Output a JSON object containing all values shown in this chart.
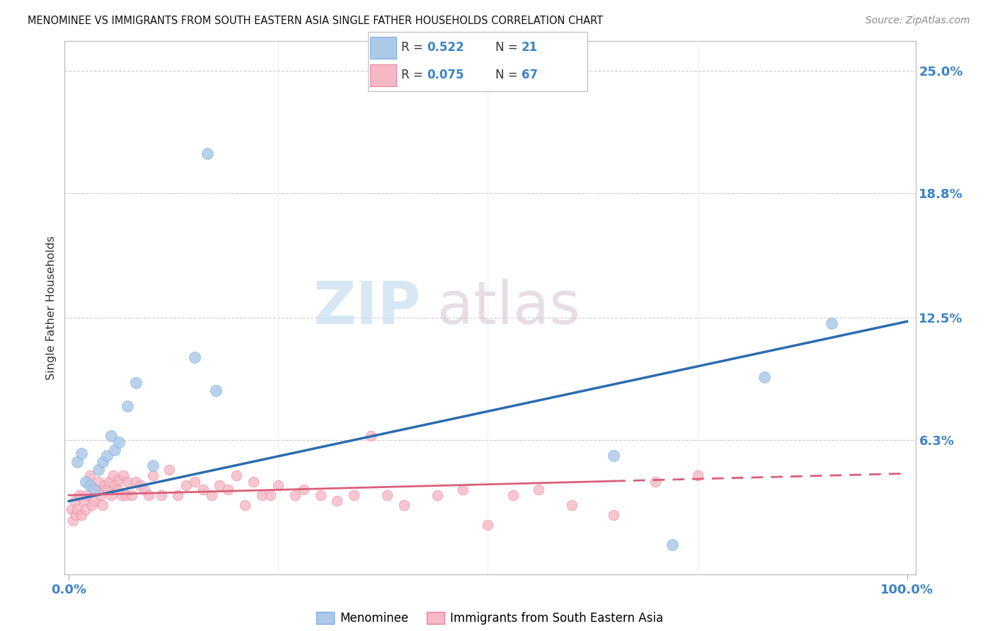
{
  "title": "MENOMINEE VS IMMIGRANTS FROM SOUTH EASTERN ASIA SINGLE FATHER HOUSEHOLDS CORRELATION CHART",
  "source": "Source: ZipAtlas.com",
  "ylabel": "Single Father Households",
  "right_yticks": [
    0.0,
    6.3,
    12.5,
    18.8,
    25.0
  ],
  "right_yticklabels": [
    "",
    "6.3%",
    "12.5%",
    "18.8%",
    "25.0%"
  ],
  "grid_yvals": [
    6.3,
    12.5,
    18.8,
    25.0
  ],
  "xlim": [
    -0.5,
    101
  ],
  "ylim": [
    -0.5,
    26.5
  ],
  "blue_scatter_color": "#adc9e8",
  "blue_scatter_edge": "#7aade0",
  "pink_scatter_color": "#f5b8c4",
  "pink_scatter_edge": "#e8849a",
  "blue_line_color": "#2b6cb0",
  "pink_line_color": "#d95f7a",
  "blue_line_x0": 0,
  "blue_line_y0": 3.2,
  "blue_line_x1": 100,
  "blue_line_y1": 12.3,
  "pink_line_x0": 0,
  "pink_line_y0": 3.5,
  "pink_line_x1": 100,
  "pink_line_y1": 4.6,
  "pink_dash_start": 65,
  "watermark_zip_color": "#c8ddf0",
  "watermark_atlas_color": "#d8c8d4",
  "tick_color": "#3b82c4",
  "menominee_x": [
    1.0,
    1.5,
    2.0,
    2.5,
    3.0,
    3.5,
    4.0,
    4.5,
    5.0,
    5.5,
    6.0,
    7.0,
    8.0,
    10.0,
    15.0,
    16.5,
    17.5,
    65.0,
    72.0,
    83.0,
    91.0
  ],
  "menominee_y": [
    5.2,
    5.6,
    4.2,
    4.0,
    3.8,
    4.8,
    5.2,
    5.5,
    6.5,
    5.8,
    6.2,
    8.0,
    9.2,
    5.0,
    10.5,
    20.8,
    8.8,
    5.5,
    1.0,
    9.5,
    12.2
  ],
  "sea_x": [
    0.3,
    0.5,
    0.7,
    0.8,
    1.0,
    1.2,
    1.5,
    1.8,
    2.0,
    2.2,
    2.5,
    2.8,
    3.0,
    3.2,
    3.5,
    3.8,
    4.0,
    4.3,
    4.5,
    4.8,
    5.0,
    5.3,
    5.5,
    5.8,
    6.0,
    6.3,
    6.5,
    6.8,
    7.0,
    7.5,
    8.0,
    8.5,
    9.0,
    9.5,
    10.0,
    11.0,
    12.0,
    13.0,
    14.0,
    15.0,
    16.0,
    17.0,
    18.0,
    19.0,
    20.0,
    21.0,
    22.0,
    23.0,
    24.0,
    25.0,
    27.0,
    28.0,
    30.0,
    32.0,
    34.0,
    36.0,
    38.0,
    40.0,
    44.0,
    47.0,
    50.0,
    53.0,
    56.0,
    60.0,
    65.0,
    70.0,
    75.0
  ],
  "sea_y": [
    2.8,
    2.2,
    3.2,
    2.5,
    2.8,
    3.5,
    2.5,
    3.2,
    2.8,
    3.5,
    4.5,
    3.0,
    3.2,
    3.8,
    4.2,
    3.5,
    3.0,
    4.0,
    3.8,
    4.2,
    3.5,
    4.5,
    4.0,
    3.8,
    4.3,
    3.5,
    4.5,
    3.5,
    4.2,
    3.5,
    4.2,
    4.0,
    3.8,
    3.5,
    4.5,
    3.5,
    4.8,
    3.5,
    4.0,
    4.2,
    3.8,
    3.5,
    4.0,
    3.8,
    4.5,
    3.0,
    4.2,
    3.5,
    3.5,
    4.0,
    3.5,
    3.8,
    3.5,
    3.2,
    3.5,
    6.5,
    3.5,
    3.0,
    3.5,
    3.8,
    2.0,
    3.5,
    3.8,
    3.0,
    2.5,
    4.2,
    4.5
  ]
}
